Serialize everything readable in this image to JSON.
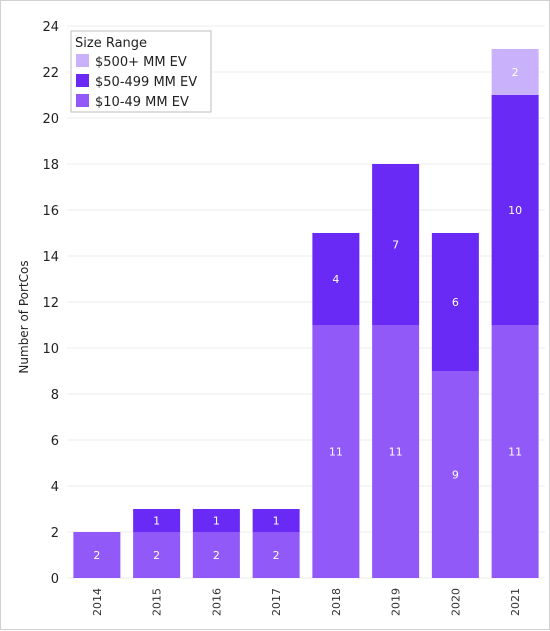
{
  "chart_data": {
    "type": "bar",
    "stacked": true,
    "categories": [
      "2014",
      "2015",
      "2016",
      "2017",
      "2018",
      "2019",
      "2020",
      "2021"
    ],
    "series": [
      {
        "name": "$10-49 MM EV",
        "values": [
          2,
          2,
          2,
          2,
          11,
          11,
          9,
          11
        ],
        "color": "#9159f7"
      },
      {
        "name": "$50-499 MM EV",
        "values": [
          0,
          1,
          1,
          1,
          4,
          7,
          6,
          10
        ],
        "color": "#6a2af5"
      },
      {
        "name": "$500+ MM EV",
        "values": [
          0,
          0,
          0,
          0,
          0,
          0,
          0,
          2
        ],
        "color": "#c9b1fb"
      }
    ],
    "legend": {
      "title": "Size Range",
      "placement": "top-left",
      "order": [
        "$500+ MM EV",
        "$50-499 MM EV",
        "$10-49 MM EV"
      ]
    },
    "title": "",
    "xlabel": "",
    "ylabel": "Number of PortCos",
    "ylim": [
      0,
      24
    ],
    "yticks": [
      0,
      2,
      4,
      6,
      8,
      10,
      12,
      14,
      16,
      18,
      20,
      22,
      24
    ],
    "grid": true
  }
}
